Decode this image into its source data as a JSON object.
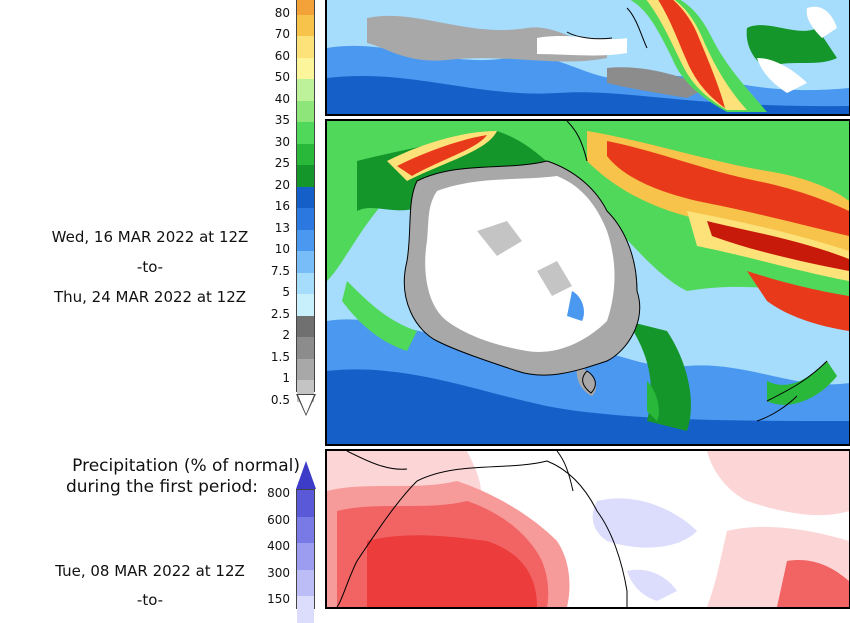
{
  "period2": {
    "from": "Wed, 16 MAR 2022 at 12Z",
    "sep": "-to-",
    "to": "Thu, 24 MAR 2022 at 12Z"
  },
  "precip_legend": {
    "ticks": [
      "80",
      "70",
      "60",
      "50",
      "40",
      "35",
      "30",
      "25",
      "20",
      "16",
      "13",
      "10",
      "7.5",
      "5",
      "2.5",
      "2",
      "1.5",
      "1",
      "0.5"
    ],
    "colors": [
      "#f3a23a",
      "#f8c34a",
      "#fde27a",
      "#fdf59c",
      "#bdf29a",
      "#8ee67a",
      "#4fd85a",
      "#2ab83a",
      "#14962a",
      "#1460c8",
      "#2a78e0",
      "#4a98f0",
      "#78bcf8",
      "#a6dcfc",
      "#c8f0fc",
      "#707070",
      "#8c8c8c",
      "#a8a8a8",
      "#c4c4c4"
    ]
  },
  "pct_section": {
    "title_line1": "Precipitation (% of normal)",
    "title_line2": "during the first period:",
    "ticks": [
      "800",
      "600",
      "400",
      "300",
      "150"
    ],
    "colors": [
      "#5a5ad8",
      "#7a7ae6",
      "#9c9cf0",
      "#bcbcf6",
      "#dcdcfc"
    ]
  },
  "period1": {
    "from": "Tue, 08 MAR 2022 at 12Z",
    "sep": "-to-"
  }
}
